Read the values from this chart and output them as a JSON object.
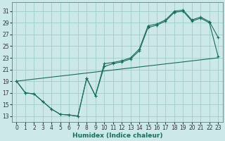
{
  "xlabel": "Humidex (Indice chaleur)",
  "xlim": [
    -0.5,
    23.5
  ],
  "ylim": [
    12,
    32.5
  ],
  "xticks": [
    0,
    1,
    2,
    3,
    4,
    5,
    6,
    7,
    8,
    9,
    10,
    11,
    12,
    13,
    14,
    15,
    16,
    17,
    18,
    19,
    20,
    21,
    22,
    23
  ],
  "yticks": [
    13,
    15,
    17,
    19,
    21,
    23,
    25,
    27,
    29,
    31
  ],
  "bg_color": "#cce8e8",
  "grid_color": "#a0cccc",
  "line_color": "#1a6b5a",
  "line1_x": [
    0,
    1,
    2,
    3,
    4,
    5,
    6,
    7,
    8,
    9,
    10,
    11,
    12,
    13,
    14,
    15,
    16,
    17,
    18,
    19,
    20,
    21,
    22,
    23
  ],
  "line1_y": [
    19,
    17,
    16.8,
    15.5,
    14.2,
    13.3,
    13.2,
    13.0,
    19.5,
    16.5,
    22.0,
    22.2,
    22.5,
    23.0,
    24.5,
    28.5,
    28.8,
    29.5,
    31.0,
    31.2,
    29.5,
    30.0,
    29.2,
    26.5
  ],
  "line2_x": [
    0,
    1,
    2,
    3,
    4,
    5,
    6,
    7,
    8,
    9,
    10,
    11,
    12,
    13,
    14,
    15,
    16,
    17,
    18,
    19,
    20,
    21,
    22,
    23
  ],
  "line2_y": [
    19,
    17,
    16.8,
    15.5,
    14.2,
    13.3,
    13.2,
    13.0,
    19.5,
    16.5,
    21.5,
    22.0,
    22.3,
    22.8,
    24.2,
    28.2,
    28.6,
    29.3,
    30.8,
    31.0,
    29.3,
    29.8,
    29.0,
    23.2
  ],
  "line3_x": [
    0,
    1,
    2,
    3,
    4,
    5,
    6,
    7,
    8,
    9,
    10,
    11,
    12,
    13,
    14,
    15,
    16,
    17,
    18,
    19,
    20,
    21,
    22,
    23
  ],
  "line3_y": [
    19,
    19.17,
    19.35,
    19.52,
    19.7,
    19.87,
    20.04,
    20.22,
    20.39,
    20.57,
    20.74,
    20.91,
    21.09,
    21.26,
    21.43,
    21.61,
    21.78,
    21.96,
    22.13,
    22.3,
    22.48,
    22.65,
    22.83,
    23.0
  ]
}
